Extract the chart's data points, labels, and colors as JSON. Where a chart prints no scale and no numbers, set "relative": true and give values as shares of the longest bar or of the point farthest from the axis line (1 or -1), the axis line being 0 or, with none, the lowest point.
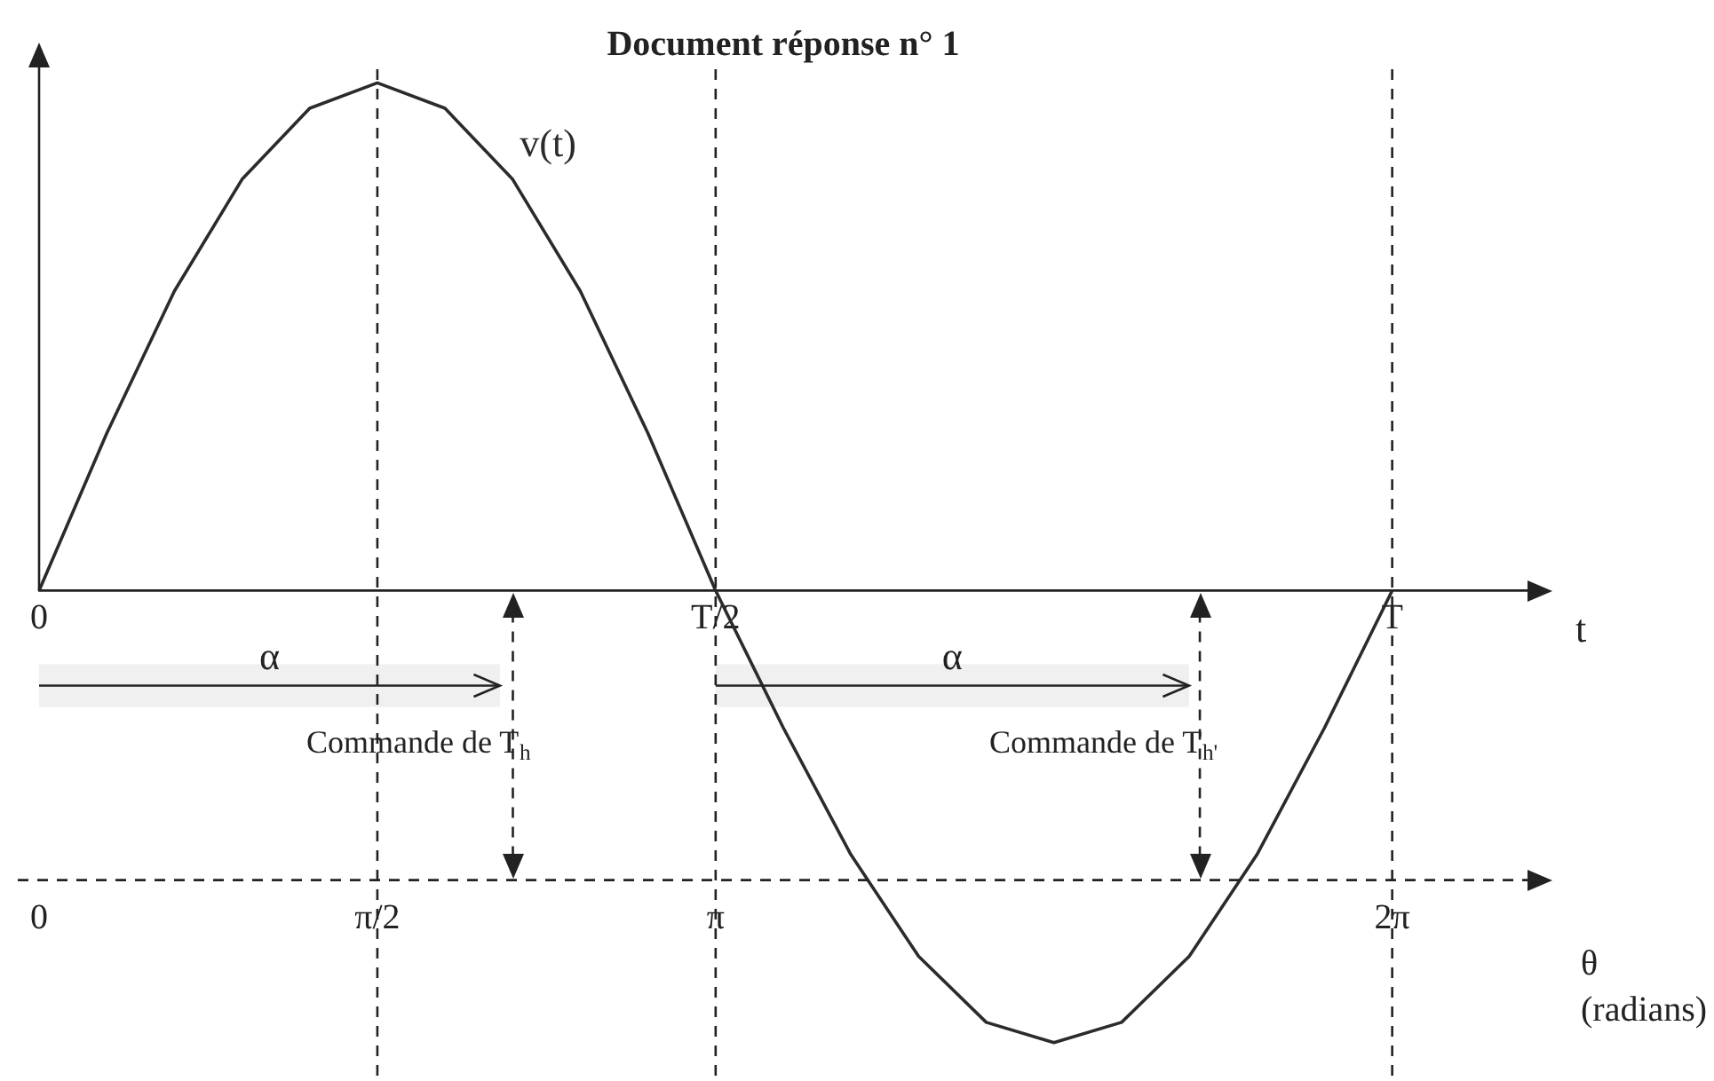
{
  "chart_data": {
    "type": "line",
    "title": "Document réponse n° 1",
    "relative": true,
    "legend": false,
    "grid": false,
    "marker": "none",
    "line_style": "solid",
    "xlabel": "t",
    "x2label": "θ\n(radians)",
    "categories": [
      "0",
      null,
      null,
      null,
      null,
      null,
      null,
      null,
      null,
      null,
      "T/2",
      null,
      null,
      null,
      null,
      null,
      null,
      null,
      null,
      null,
      "T",
      null,
      null
    ],
    "series": [
      {
        "name": "v(t)",
        "color": "#2b2b2b",
        "values": [
          0,
          0.31,
          0.59,
          0.81,
          0.95,
          1,
          0.95,
          0.81,
          0.59,
          0.31,
          0,
          -0.27,
          -0.52,
          -0.72,
          -0.85,
          -0.89,
          -0.85,
          -0.72,
          -0.52,
          -0.27,
          0,
          null,
          null
        ]
      }
    ],
    "x2lim": [
      0,
      6.9115
    ],
    "x2ticks": [
      {
        "value": 0,
        "label": "0"
      },
      {
        "value": 1.5708,
        "label": "π/2"
      },
      {
        "value": 3.1416,
        "label": "π"
      },
      {
        "value": 6.2832,
        "label": "2π"
      }
    ],
    "ref_lines": [
      {
        "axis": "y",
        "value": -0.57,
        "line_style": "dashed"
      },
      {
        "axis": "x2",
        "value": 1.5708,
        "line_style": "dashed"
      },
      {
        "axis": "x2",
        "value": 3.1416,
        "line_style": "dashed"
      },
      {
        "axis": "x2",
        "value": 6.2832,
        "line_style": "dashed"
      },
      {
        "axis": "x2",
        "value": 2.2,
        "label": "Commande de T$_{h}$",
        "line_style": "dashed"
      },
      {
        "axis": "x2",
        "value": 5.39,
        "label": "Commande de T$_{h'}$",
        "line_style": "dashed"
      }
    ],
    "bands": [
      {
        "axis": "x2",
        "from": 0,
        "to": 2.14,
        "label": "α",
        "color": "#f0f0f0"
      },
      {
        "axis": "x2",
        "from": 3.1416,
        "to": 5.34,
        "label": "α",
        "color": "#f0f0f0"
      }
    ]
  }
}
